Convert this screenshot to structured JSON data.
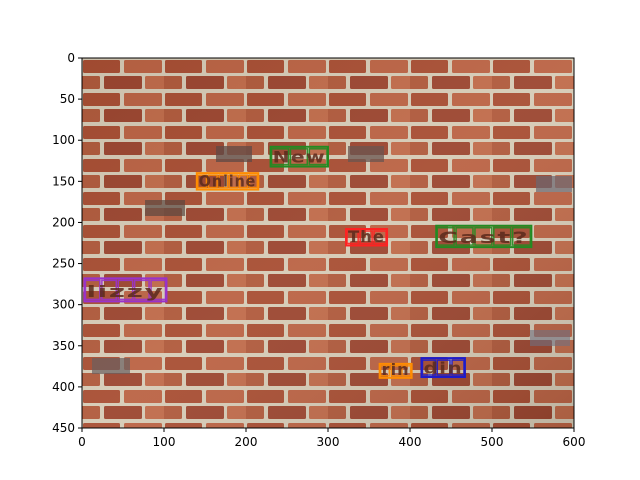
{
  "chart_data": {
    "type": "image-annotation",
    "title": "",
    "xlabel": "",
    "ylabel": "",
    "xlim": [
      0,
      600
    ],
    "ylim": [
      450,
      0
    ],
    "x_ticks": [
      0,
      100,
      200,
      300,
      400,
      500,
      600
    ],
    "y_ticks": [
      0,
      50,
      100,
      150,
      200,
      250,
      300,
      350,
      400,
      450
    ],
    "background": "brick wall photograph",
    "grid": false,
    "words": [
      {
        "text": "New",
        "color": "#228B22",
        "x0": 230,
        "x1": 300,
        "y0": 108,
        "y1": 132,
        "chars": [
          [
            230,
            253
          ],
          [
            253,
            276
          ],
          [
            276,
            300
          ]
        ]
      },
      {
        "text": "Online",
        "color": "#FF8C00",
        "x0": 140,
        "x1": 215,
        "y0": 140,
        "y1": 160,
        "chars": [
          [
            140,
            153
          ],
          [
            153,
            166
          ],
          [
            166,
            179
          ],
          [
            179,
            191
          ],
          [
            191,
            203
          ],
          [
            203,
            215
          ]
        ]
      },
      {
        "text": "The",
        "color": "#FF2222",
        "x0": 322,
        "x1": 372,
        "y0": 208,
        "y1": 228,
        "chars": [
          [
            322,
            338
          ],
          [
            338,
            355
          ],
          [
            355,
            372
          ]
        ]
      },
      {
        "text": "Cast?",
        "color": "#228B22",
        "x0": 432,
        "x1": 548,
        "y0": 204,
        "y1": 230,
        "chars": [
          [
            432,
            455
          ],
          [
            455,
            478
          ],
          [
            478,
            501
          ],
          [
            501,
            524
          ],
          [
            524,
            548
          ]
        ]
      },
      {
        "text": "lizzy",
        "color": "#9932CC",
        "x0": 3,
        "x1": 103,
        "y0": 268,
        "y1": 296,
        "chars": [
          [
            3,
            23
          ],
          [
            23,
            43
          ],
          [
            43,
            63
          ],
          [
            63,
            83
          ],
          [
            83,
            103
          ]
        ]
      },
      {
        "text": "rin",
        "color": "#FF8C00",
        "x0": 363,
        "x1": 402,
        "y0": 372,
        "y1": 389,
        "chars": [
          [
            363,
            376
          ],
          [
            376,
            389
          ],
          [
            389,
            402
          ]
        ]
      },
      {
        "text": "din",
        "color": "#1C1CCC",
        "x0": 414,
        "x1": 467,
        "y0": 365,
        "y1": 388,
        "chars": [
          [
            414,
            432
          ],
          [
            432,
            450
          ],
          [
            450,
            467
          ]
        ]
      }
    ]
  }
}
